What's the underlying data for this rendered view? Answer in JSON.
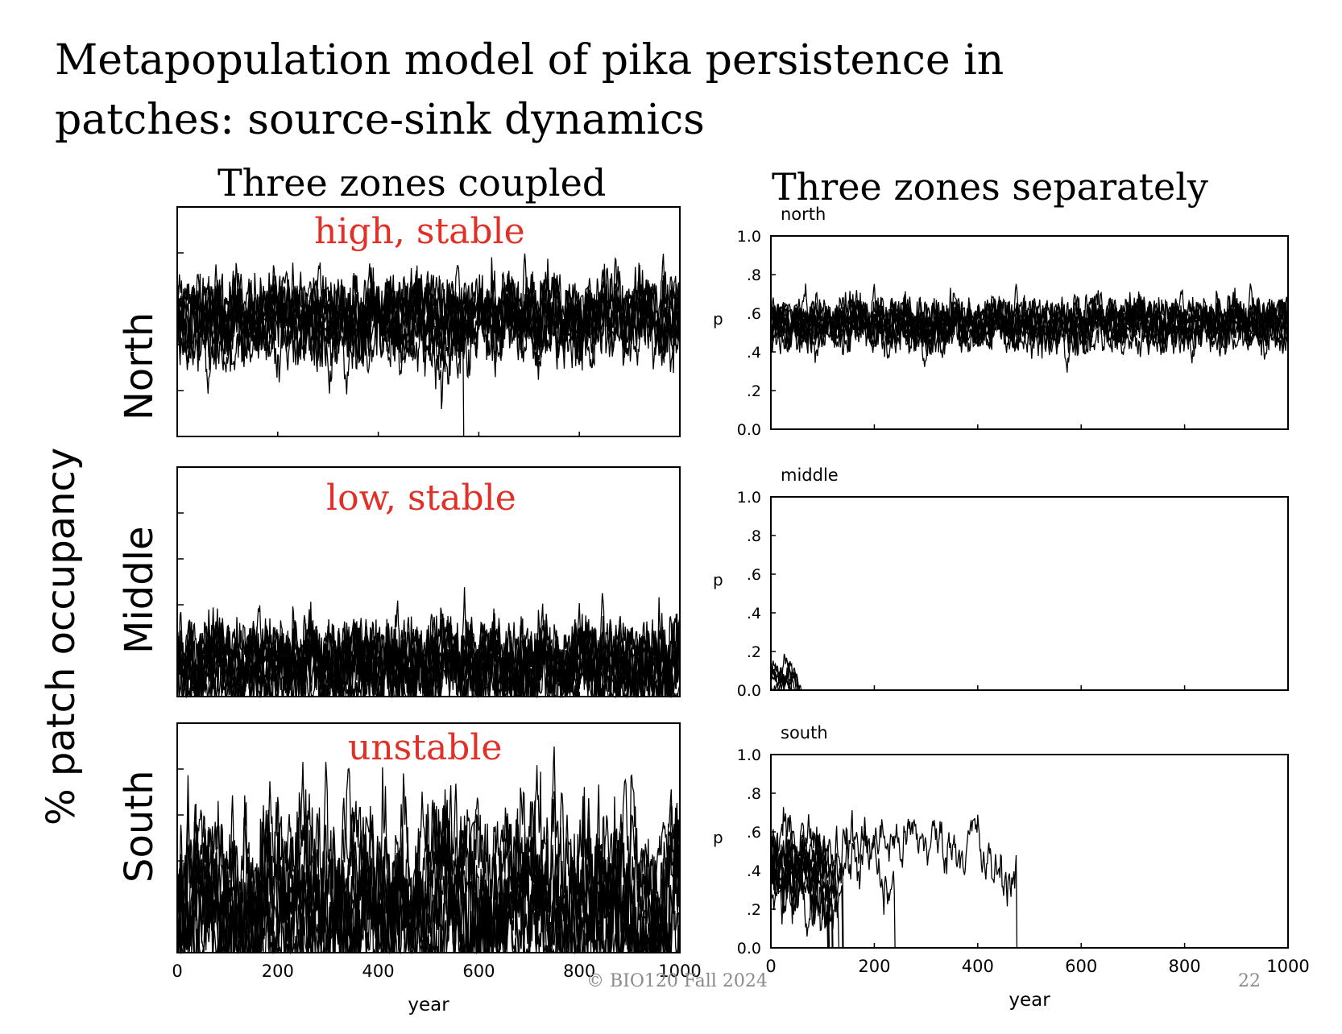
{
  "slide": {
    "title_line1": "Metapopulation model of pika persistence in",
    "title_line2": "patches: source-sink dynamics",
    "left_heading": "Three zones coupled",
    "right_heading": "Three zones separately",
    "y_axis_label": "% patch occupancy",
    "footer_copyright": "© BIO120 Fall 2024",
    "footer_page": "22"
  },
  "annotations": {
    "north": "high, stable",
    "middle": "low, stable",
    "south": "unstable"
  },
  "colors": {
    "annotation": "#e03027",
    "trace": "#000000",
    "footer": "#8a8a8a"
  },
  "chart_data": [
    {
      "id": "coupled-north",
      "type": "line",
      "row_label": "North",
      "title": "",
      "xlim": [
        0,
        1000
      ],
      "ylim": [
        0,
        1
      ],
      "series": [
        {
          "n": 9,
          "mean": 0.52,
          "sd": 0.11,
          "persist": 1.0
        },
        {
          "n": 1,
          "mean": 0.5,
          "sd": 0.12,
          "extinct_at": 570
        }
      ]
    },
    {
      "id": "coupled-middle",
      "type": "line",
      "row_label": "Middle",
      "title": "",
      "xlim": [
        0,
        1000
      ],
      "ylim": [
        0,
        1
      ],
      "series": [
        {
          "n": 10,
          "mean": 0.14,
          "sd": 0.12,
          "persist": 1.0
        }
      ]
    },
    {
      "id": "coupled-south",
      "type": "line",
      "row_label": "South",
      "title": "",
      "xlim": [
        0,
        1000
      ],
      "ylim": [
        0,
        1
      ],
      "xticks": [
        0,
        200,
        400,
        600,
        800,
        1000
      ],
      "xlabel": "year",
      "series": [
        {
          "n": 9,
          "mean": 0.22,
          "sd": 0.2,
          "persist": 1.0,
          "cyclic": true
        }
      ]
    },
    {
      "id": "separate-north",
      "type": "line",
      "title": "north",
      "xlim": [
        0,
        1000
      ],
      "ylim": [
        0,
        1
      ],
      "ylabel": "p",
      "yticks": [
        "0.0",
        ".2",
        ".4",
        ".6",
        ".8",
        "1.0"
      ],
      "series": [
        {
          "n": 10,
          "mean": 0.55,
          "sd": 0.08,
          "persist": 1.0
        }
      ]
    },
    {
      "id": "separate-middle",
      "type": "line",
      "title": "middle",
      "xlim": [
        0,
        1000
      ],
      "ylim": [
        0,
        1
      ],
      "ylabel": "p",
      "yticks": [
        "0.0",
        ".2",
        ".4",
        ".6",
        ".8",
        "1.0"
      ],
      "series": [
        {
          "n": 6,
          "mean": 0.08,
          "sd": 0.05,
          "extinct_at": 60
        }
      ]
    },
    {
      "id": "separate-south",
      "type": "line",
      "title": "south",
      "xlim": [
        0,
        1000
      ],
      "ylim": [
        0,
        1
      ],
      "ylabel": "p",
      "yticks": [
        "0.0",
        ".2",
        ".4",
        ".6",
        ".8",
        "1.0"
      ],
      "xticks": [
        0,
        200,
        400,
        600,
        800,
        1000
      ],
      "xlabel": "year",
      "series": [
        {
          "n": 8,
          "mean": 0.4,
          "sd": 0.12,
          "extinct_at": 140
        },
        {
          "n": 1,
          "mean": 0.45,
          "sd": 0.1,
          "extinct_at": 240
        },
        {
          "n": 1,
          "mean": 0.55,
          "sd": 0.1,
          "extinct_at": 475
        }
      ]
    }
  ]
}
